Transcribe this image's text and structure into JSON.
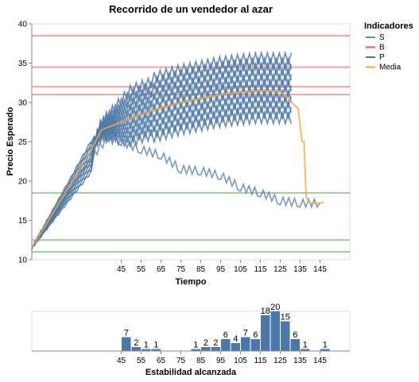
{
  "chart_data": [
    {
      "type": "line",
      "title": "Recorrido de un vendedor al azar",
      "xlabel": "Tiempo",
      "ylabel": "Precio Esperado",
      "xlim": [
        0,
        160
      ],
      "ylim": [
        10,
        40
      ],
      "x_ticks": [
        45,
        55,
        65,
        75,
        85,
        95,
        105,
        115,
        125,
        135,
        145
      ],
      "y_ticks": [
        10,
        15,
        20,
        25,
        30,
        35,
        40
      ],
      "grid": false,
      "legend": {
        "title": "Indicadores",
        "position": "top-right",
        "items": [
          {
            "label": "S",
            "color": "#54a24b"
          },
          {
            "label": "B",
            "color": "#e45756"
          },
          {
            "label": "P",
            "color": "#4c78a8"
          },
          {
            "label": "Media",
            "color": "#f2a93b"
          }
        ]
      },
      "horizontal_lines": [
        {
          "group": "S",
          "y": 18.5
        },
        {
          "group": "S",
          "y": 12.5
        },
        {
          "group": "S",
          "y": 11.0
        },
        {
          "group": "B",
          "y": 38.5
        },
        {
          "group": "B",
          "y": 34.5
        },
        {
          "group": "B",
          "y": 32.0
        },
        {
          "group": "B",
          "y": 31.0
        }
      ],
      "lower_path": [
        [
          0,
          11.5
        ],
        [
          30,
          23
        ],
        [
          40,
          26
        ],
        [
          45,
          25
        ],
        [
          55,
          24
        ],
        [
          65,
          23.3
        ],
        [
          75,
          21.5
        ],
        [
          85,
          21.3
        ],
        [
          95,
          20.7
        ],
        [
          105,
          19.2
        ],
        [
          115,
          18.5
        ],
        [
          125,
          17.5
        ],
        [
          135,
          17.2
        ],
        [
          145,
          17.2
        ]
      ],
      "mean_path": [
        [
          0,
          11.5
        ],
        [
          30,
          24
        ],
        [
          35,
          26.5
        ],
        [
          45,
          27.5
        ],
        [
          55,
          28.5
        ],
        [
          65,
          29.3
        ],
        [
          75,
          30
        ],
        [
          85,
          30.5
        ],
        [
          95,
          31
        ],
        [
          105,
          31.3
        ],
        [
          115,
          31.5
        ],
        [
          125,
          31.4
        ],
        [
          130,
          30.2
        ],
        [
          134,
          29.2
        ],
        [
          136,
          25
        ],
        [
          137,
          25
        ],
        [
          138,
          18
        ],
        [
          140,
          17.2
        ],
        [
          145,
          17.2
        ],
        [
          147,
          17.3
        ]
      ]
    },
    {
      "type": "bar",
      "xlabel": "Estabilidad alcanzada",
      "x_ticks": [
        45,
        55,
        65,
        75,
        85,
        95,
        105,
        115,
        125,
        135,
        145
      ],
      "bins": [
        {
          "x": 47.5,
          "value": 7
        },
        {
          "x": 52.5,
          "value": 2
        },
        {
          "x": 57.5,
          "value": 1
        },
        {
          "x": 62.5,
          "value": 1
        },
        {
          "x": 82.5,
          "value": 1
        },
        {
          "x": 87.5,
          "value": 2
        },
        {
          "x": 92.5,
          "value": 2
        },
        {
          "x": 97.5,
          "value": 6
        },
        {
          "x": 102.5,
          "value": 4
        },
        {
          "x": 107.5,
          "value": 7
        },
        {
          "x": 112.5,
          "value": 6
        },
        {
          "x": 117.5,
          "value": 18
        },
        {
          "x": 122.5,
          "value": 20
        },
        {
          "x": 127.5,
          "value": 15
        },
        {
          "x": 132.5,
          "value": 6
        },
        {
          "x": 137.5,
          "value": 1
        },
        {
          "x": 147.5,
          "value": 1
        }
      ],
      "color": "#4c78a8"
    }
  ]
}
